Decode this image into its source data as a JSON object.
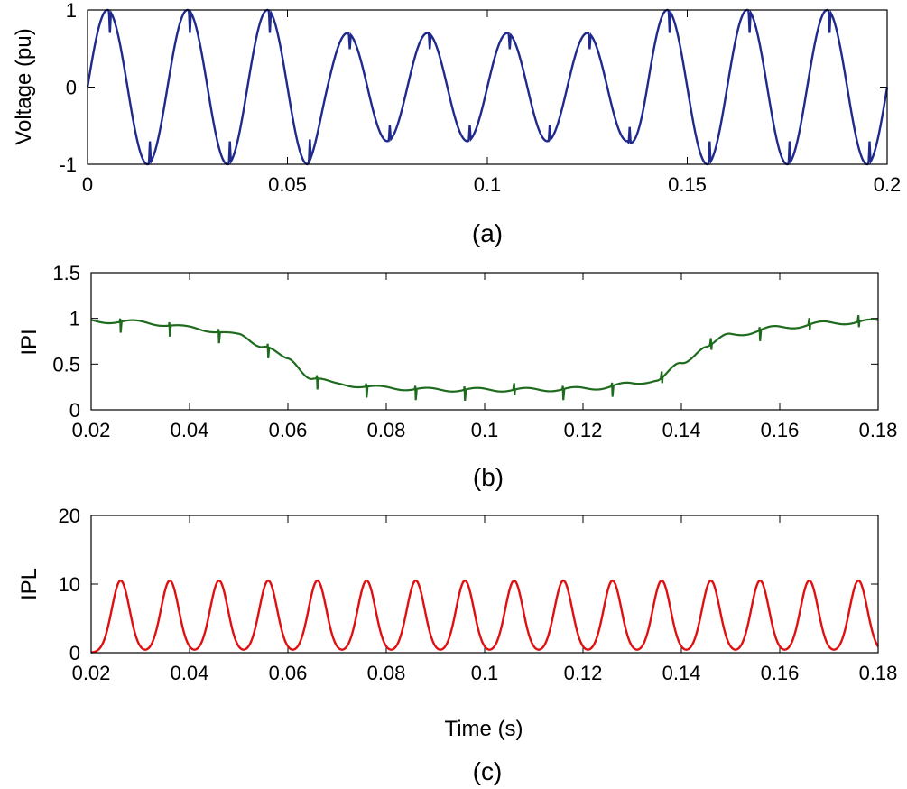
{
  "chart_data": [
    {
      "id": "a",
      "type": "line",
      "caption": "(a)",
      "title": "",
      "xlabel": "",
      "ylabel": "Voltage (pu)",
      "xlim": [
        0,
        0.2
      ],
      "ylim": [
        -1,
        1
      ],
      "xticks": [
        0,
        0.05,
        0.1,
        0.15,
        0.2
      ],
      "xtick_labels": [
        "0",
        "0.05",
        "0.1",
        "0.15",
        "0.2"
      ],
      "yticks": [
        -1,
        0,
        1
      ],
      "ytick_labels": [
        "-1",
        "0",
        "1"
      ],
      "series": [
        {
          "name": "Voltage",
          "color": "#1f2a8c",
          "description": "50 Hz sinusoid; amplitude 1 pu for t<0.06 and t>0.14, sag to ~0.7 pu between 0.06 and 0.14; notches after each peak",
          "frequency_hz": 50,
          "normal_amplitude": 1.0,
          "sag_amplitude": 0.7,
          "sag_start": 0.06,
          "sag_end": 0.14
        }
      ]
    },
    {
      "id": "b",
      "type": "line",
      "caption": "(b)",
      "title": "",
      "xlabel": "",
      "ylabel": "IPI",
      "xlim": [
        0.02,
        0.18
      ],
      "ylim": [
        0,
        1.5
      ],
      "xticks": [
        0.02,
        0.04,
        0.06,
        0.08,
        0.1,
        0.12,
        0.14,
        0.16,
        0.18
      ],
      "xtick_labels": [
        "0.02",
        "0.04",
        "0.06",
        "0.08",
        "0.1",
        "0.12",
        "0.14",
        "0.16",
        "0.18"
      ],
      "yticks": [
        0,
        0.5,
        1,
        1.5
      ],
      "ytick_labels": [
        "0",
        "0.5",
        "1",
        "1.5"
      ],
      "series": [
        {
          "name": "IPI",
          "color": "#1e6b1e",
          "points": [
            [
              0.02,
              0.97
            ],
            [
              0.03,
              0.96
            ],
            [
              0.04,
              0.9
            ],
            [
              0.05,
              0.82
            ],
            [
              0.055,
              0.7
            ],
            [
              0.06,
              0.55
            ],
            [
              0.065,
              0.35
            ],
            [
              0.07,
              0.28
            ],
            [
              0.08,
              0.24
            ],
            [
              0.09,
              0.22
            ],
            [
              0.1,
              0.22
            ],
            [
              0.11,
              0.22
            ],
            [
              0.12,
              0.23
            ],
            [
              0.13,
              0.28
            ],
            [
              0.135,
              0.33
            ],
            [
              0.14,
              0.5
            ],
            [
              0.145,
              0.7
            ],
            [
              0.15,
              0.82
            ],
            [
              0.16,
              0.9
            ],
            [
              0.17,
              0.95
            ],
            [
              0.18,
              0.97
            ]
          ]
        }
      ]
    },
    {
      "id": "c",
      "type": "line",
      "caption": "(c)",
      "title": "",
      "xlabel": "Time (s)",
      "ylabel": "IPL",
      "xlim": [
        0.02,
        0.18
      ],
      "ylim": [
        0,
        20
      ],
      "xticks": [
        0.02,
        0.04,
        0.06,
        0.08,
        0.1,
        0.12,
        0.14,
        0.16,
        0.18
      ],
      "xtick_labels": [
        "0.02",
        "0.04",
        "0.06",
        "0.08",
        "0.1",
        "0.12",
        "0.14",
        "0.16",
        "0.18"
      ],
      "yticks": [
        0,
        10,
        20
      ],
      "ytick_labels": [
        "0",
        "10",
        "20"
      ],
      "series": [
        {
          "name": "IPL",
          "color": "#e01010",
          "peak_value": 10.5,
          "peak_times": [
            0.026,
            0.036,
            0.046,
            0.056,
            0.066,
            0.076,
            0.086,
            0.096,
            0.106,
            0.116,
            0.126,
            0.136,
            0.146,
            0.156,
            0.166,
            0.176
          ]
        }
      ]
    }
  ]
}
